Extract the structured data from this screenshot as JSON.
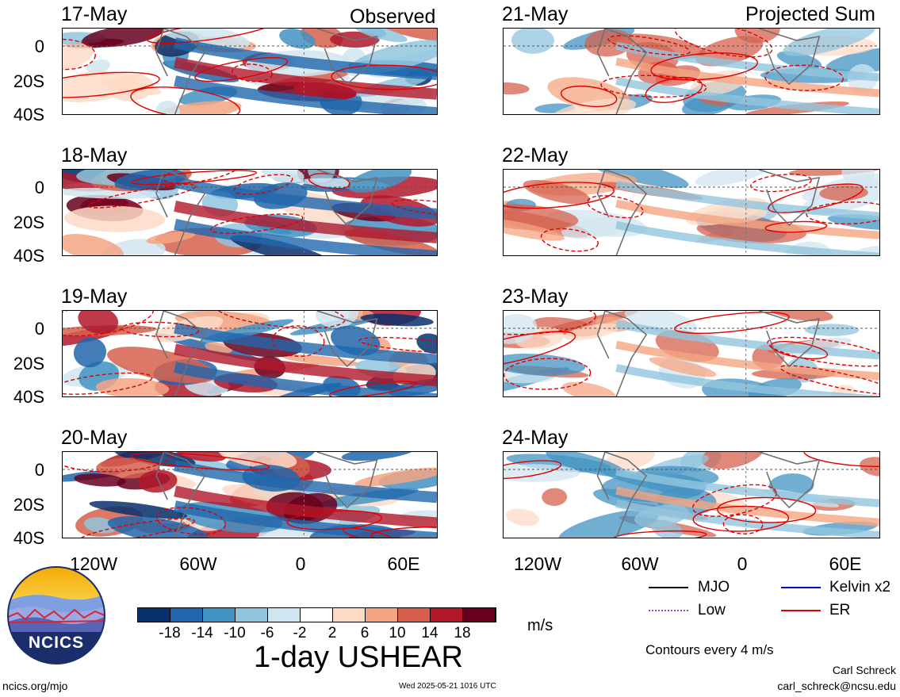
{
  "columns": {
    "left_title": "Observed",
    "right_title": "Projected Sum"
  },
  "panels_left": [
    {
      "date": "17-May"
    },
    {
      "date": "18-May"
    },
    {
      "date": "19-May"
    },
    {
      "date": "20-May"
    }
  ],
  "panels_right": [
    {
      "date": "21-May"
    },
    {
      "date": "22-May"
    },
    {
      "date": "23-May"
    },
    {
      "date": "24-May"
    }
  ],
  "y_ticks": [
    "0",
    "20S",
    "40S"
  ],
  "x_ticks": [
    "120W",
    "60W",
    "0",
    "60E"
  ],
  "colorbar": {
    "colors": [
      "#08306b",
      "#2166ac",
      "#4393c3",
      "#92c5de",
      "#d1e5f0",
      "#ffffff",
      "#fddbc7",
      "#f4a582",
      "#d6604d",
      "#b2182b",
      "#67001f"
    ],
    "labels": [
      "-18",
      "-14",
      "-10",
      "-6",
      "-2",
      "2",
      "6",
      "10",
      "14",
      "18"
    ],
    "units": "m/s"
  },
  "title": "1-day USHEAR",
  "legend": [
    {
      "label": "MJO",
      "color": "#000000"
    },
    {
      "label": "Kelvin x2",
      "color": "#0000cc"
    },
    {
      "label": "Low",
      "color": "#b040d0"
    },
    {
      "label": "ER",
      "color": "#e00000"
    }
  ],
  "contour_note": "Contours every 4 m/s",
  "footer": {
    "site": "ncics.org/mjo",
    "timestamp": "Wed 2025-05-21 1016 UTC",
    "author": "Carl Schreck",
    "email": "carl_schreck@ncsu.edu"
  },
  "logo": {
    "text": "NCICS"
  }
}
